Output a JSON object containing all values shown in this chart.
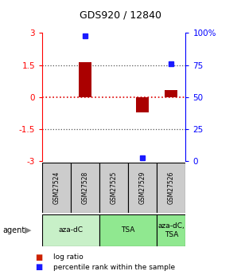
{
  "title": "GDS920 / 12840",
  "samples": [
    "GSM27524",
    "GSM27528",
    "GSM27525",
    "GSM27529",
    "GSM27526"
  ],
  "log_ratios": [
    0.0,
    1.62,
    0.0,
    -0.72,
    0.33
  ],
  "percentile_ranks": [
    null,
    97.5,
    null,
    2.5,
    76.0
  ],
  "ylim": [
    -3,
    3
  ],
  "yticks_left": [
    -3,
    -1.5,
    0,
    1.5,
    3
  ],
  "yticks_left_labels": [
    "-3",
    "-1.5",
    "0",
    "1.5",
    "3"
  ],
  "yticks_right": [
    0,
    25,
    50,
    75,
    100
  ],
  "yticks_right_labels": [
    "0",
    "25",
    "50",
    "75",
    "100%"
  ],
  "groups": [
    {
      "label": "aza-dC",
      "start": 0,
      "end": 2,
      "color": "#c8f0c8"
    },
    {
      "label": "TSA",
      "start": 2,
      "end": 4,
      "color": "#90e890"
    },
    {
      "label": "aza-dC,\nTSA",
      "start": 4,
      "end": 5,
      "color": "#90e890"
    }
  ],
  "bar_color": "#aa0000",
  "dot_color": "#1a1aff",
  "zero_line_color": "#dd0000",
  "dotted_line_color": "#555555",
  "sample_box_color": "#cccccc",
  "legend_bar_color": "#cc2200",
  "legend_dot_color": "#1a1aff"
}
